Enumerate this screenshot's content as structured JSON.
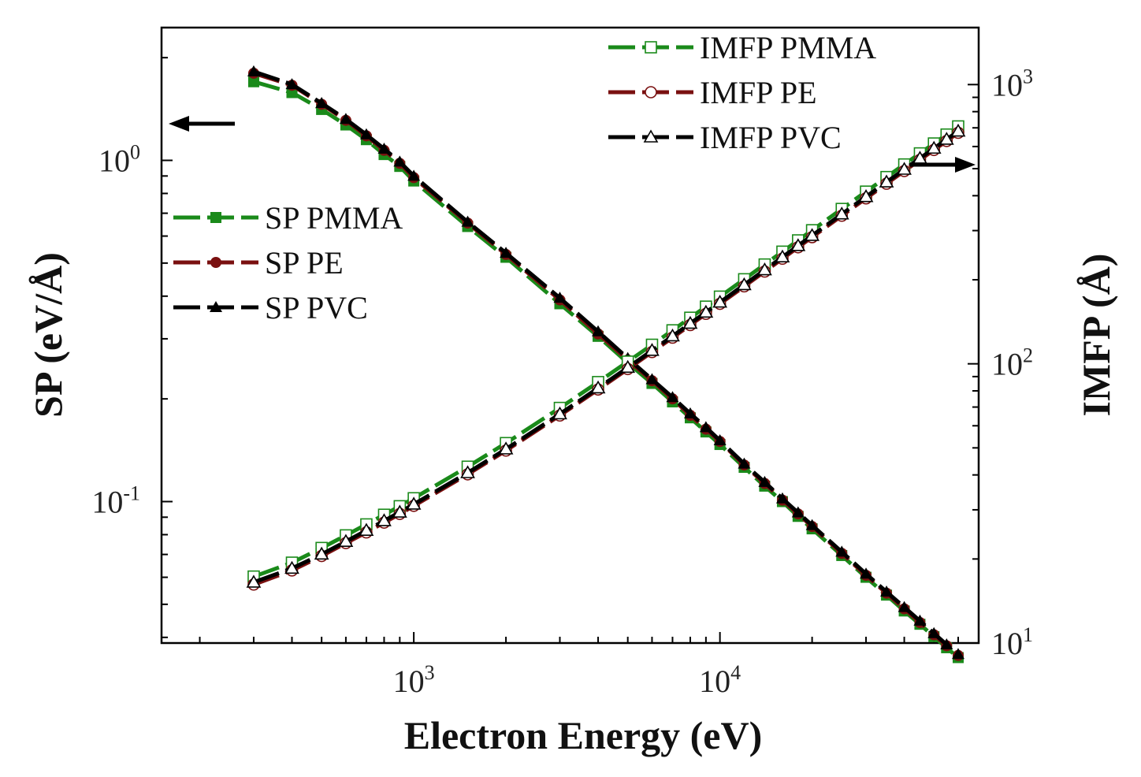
{
  "chart_data": {
    "type": "line",
    "x_scale": "log",
    "y_scale": "log",
    "y2_scale": "log",
    "xlabel": "Electron Energy (eV)",
    "ylabel": "SP (eV/Å)",
    "y2label": "IMFP (Å)",
    "xlim": [
      150,
      70000
    ],
    "ylim": [
      0.0385,
      2.45
    ],
    "y2lim": [
      10,
      1600
    ],
    "x_ticks": [
      {
        "base": "10",
        "exp": "3",
        "value": 1000
      },
      {
        "base": "10",
        "exp": "4",
        "value": 10000
      }
    ],
    "y_ticks": [
      {
        "base": "10",
        "exp": "-1",
        "value": 0.1
      },
      {
        "base": "10",
        "exp": "0",
        "value": 1
      }
    ],
    "y2_ticks": [
      {
        "base": "10",
        "exp": "1",
        "value": 10
      },
      {
        "base": "10",
        "exp": "2",
        "value": 100
      },
      {
        "base": "10",
        "exp": "3",
        "value": 1000
      }
    ],
    "grid": false,
    "x": [
      300,
      400,
      500,
      600,
      700,
      800,
      900,
      1000,
      1500,
      2000,
      3000,
      4000,
      5000,
      6000,
      7000,
      8000,
      9000,
      10000,
      12000,
      14000,
      16000,
      18000,
      20000,
      25000,
      30000,
      35000,
      40000,
      45000,
      50000,
      55000,
      60000
    ],
    "series": [
      {
        "name": "SP PMMA",
        "axis": "left",
        "color": "#1a8a1a",
        "marker": "filled-square",
        "values": [
          1.7,
          1.58,
          1.41,
          1.27,
          1.15,
          1.04,
          0.96,
          0.87,
          0.64,
          0.52,
          0.38,
          0.305,
          0.255,
          0.222,
          0.196,
          0.176,
          0.16,
          0.147,
          0.126,
          0.111,
          0.1,
          0.0905,
          0.0832,
          0.0695,
          0.06,
          0.0532,
          0.0478,
          0.0437,
          0.0402,
          0.0373,
          0.0349
        ]
      },
      {
        "name": "SP PE",
        "axis": "left",
        "color": "#7a1010",
        "marker": "filled-circle",
        "values": [
          1.8,
          1.66,
          1.46,
          1.31,
          1.18,
          1.07,
          0.98,
          0.89,
          0.655,
          0.53,
          0.39,
          0.31,
          0.26,
          0.226,
          0.2,
          0.179,
          0.163,
          0.15,
          0.128,
          0.113,
          0.101,
          0.092,
          0.0845,
          0.0705,
          0.0608,
          0.0539,
          0.0485,
          0.0442,
          0.0407,
          0.0378,
          0.0354
        ]
      },
      {
        "name": "SP PVC",
        "axis": "left",
        "color": "#000000",
        "marker": "filled-triangle",
        "values": [
          1.82,
          1.67,
          1.47,
          1.32,
          1.19,
          1.08,
          0.99,
          0.9,
          0.66,
          0.535,
          0.395,
          0.315,
          0.263,
          0.228,
          0.202,
          0.181,
          0.165,
          0.151,
          0.129,
          0.114,
          0.102,
          0.0928,
          0.0852,
          0.0712,
          0.0614,
          0.0544,
          0.049,
          0.0447,
          0.0411,
          0.0381,
          0.0357
        ]
      },
      {
        "name": "IMFP PMMA",
        "axis": "right",
        "color": "#1a8a1a",
        "marker": "open-square",
        "values": [
          17.3,
          19.4,
          21.9,
          24.3,
          26.6,
          28.8,
          30.9,
          33.0,
          42.8,
          52.0,
          69.5,
          86.0,
          101.8,
          117.0,
          131.8,
          146.2,
          160.2,
          174.0,
          200.8,
          226.8,
          252.1,
          276.7,
          300.8,
          358.6,
          413.6,
          466.4,
          517.5,
          567.0,
          615.2,
          662.2,
          708.2
        ]
      },
      {
        "name": "IMFP PE",
        "axis": "right",
        "color": "#7a1010",
        "marker": "open-circle",
        "values": [
          16.2,
          18.2,
          20.5,
          22.8,
          24.9,
          27.0,
          29.0,
          31.0,
          40.2,
          48.9,
          65.3,
          80.9,
          95.8,
          110.2,
          124.1,
          137.7,
          151.0,
          164.0,
          189.4,
          214.0,
          238.0,
          261.4,
          284.2,
          339.1,
          391.4,
          441.6,
          490.2,
          537.4,
          583.3,
          628.1,
          672.0
        ]
      },
      {
        "name": "IMFP PVC",
        "axis": "right",
        "color": "#000000",
        "marker": "open-triangle",
        "values": [
          16.5,
          18.5,
          20.8,
          23.1,
          25.3,
          27.4,
          29.4,
          31.4,
          40.7,
          49.5,
          66.1,
          81.9,
          97.0,
          111.6,
          125.7,
          139.5,
          152.9,
          166.1,
          191.8,
          216.8,
          241.1,
          264.8,
          287.9,
          343.6,
          396.6,
          447.5,
          496.7,
          544.5,
          591.0,
          636.3,
          680.7
        ]
      }
    ],
    "arrows": [
      {
        "side": "left",
        "direction": "left"
      },
      {
        "side": "right",
        "direction": "right"
      }
    ],
    "legend_locations": {
      "sp": "left-middle",
      "imfp": "top-right"
    }
  }
}
